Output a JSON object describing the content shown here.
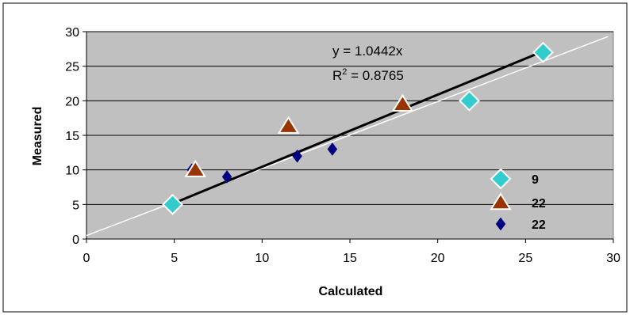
{
  "chart_data": {
    "type": "scatter",
    "title": "",
    "xlabel": "Calculated",
    "ylabel": "Measured",
    "xlim": [
      0,
      30
    ],
    "ylim": [
      0,
      30
    ],
    "xticks": [
      0,
      5,
      10,
      15,
      20,
      25,
      30
    ],
    "yticks": [
      0,
      5,
      10,
      15,
      20,
      25,
      30
    ],
    "grid": "horizontal",
    "plot_background": "#c0c0c0",
    "series": [
      {
        "marker": "small-diamond",
        "color": "#000080",
        "x": [
          6,
          8,
          12,
          14
        ],
        "y": [
          10,
          9,
          12,
          13
        ]
      },
      {
        "marker": "triangle",
        "color": "#993300",
        "x": [
          6.2,
          11.5,
          18
        ],
        "y": [
          10,
          16.3,
          19.5
        ]
      },
      {
        "marker": "large-diamond",
        "color": "#33cccc",
        "x": [
          4.9,
          21.8,
          26
        ],
        "y": [
          5,
          20,
          27
        ]
      }
    ],
    "trendline": {
      "type": "linear-through-origin",
      "slope": 1.0442,
      "x_range": [
        5,
        26
      ],
      "color": "#000000"
    },
    "reference_line": {
      "type": "identity",
      "points": [
        [
          0,
          0.5
        ],
        [
          29.7,
          29.3
        ]
      ],
      "color": "#ffffff"
    },
    "annotations": {
      "equation": "y = 1.0442x",
      "r2_prefix": "R",
      "r2_sup": "2",
      "r2_suffix": " = 0.8765"
    },
    "legend": {
      "placement": "bottom-right",
      "items": [
        {
          "marker": "large-diamond",
          "color": "#33cccc",
          "label": "9"
        },
        {
          "marker": "triangle",
          "color": "#993300",
          "label": "22"
        },
        {
          "marker": "small-diamond",
          "color": "#000080",
          "label": "22"
        }
      ]
    }
  }
}
